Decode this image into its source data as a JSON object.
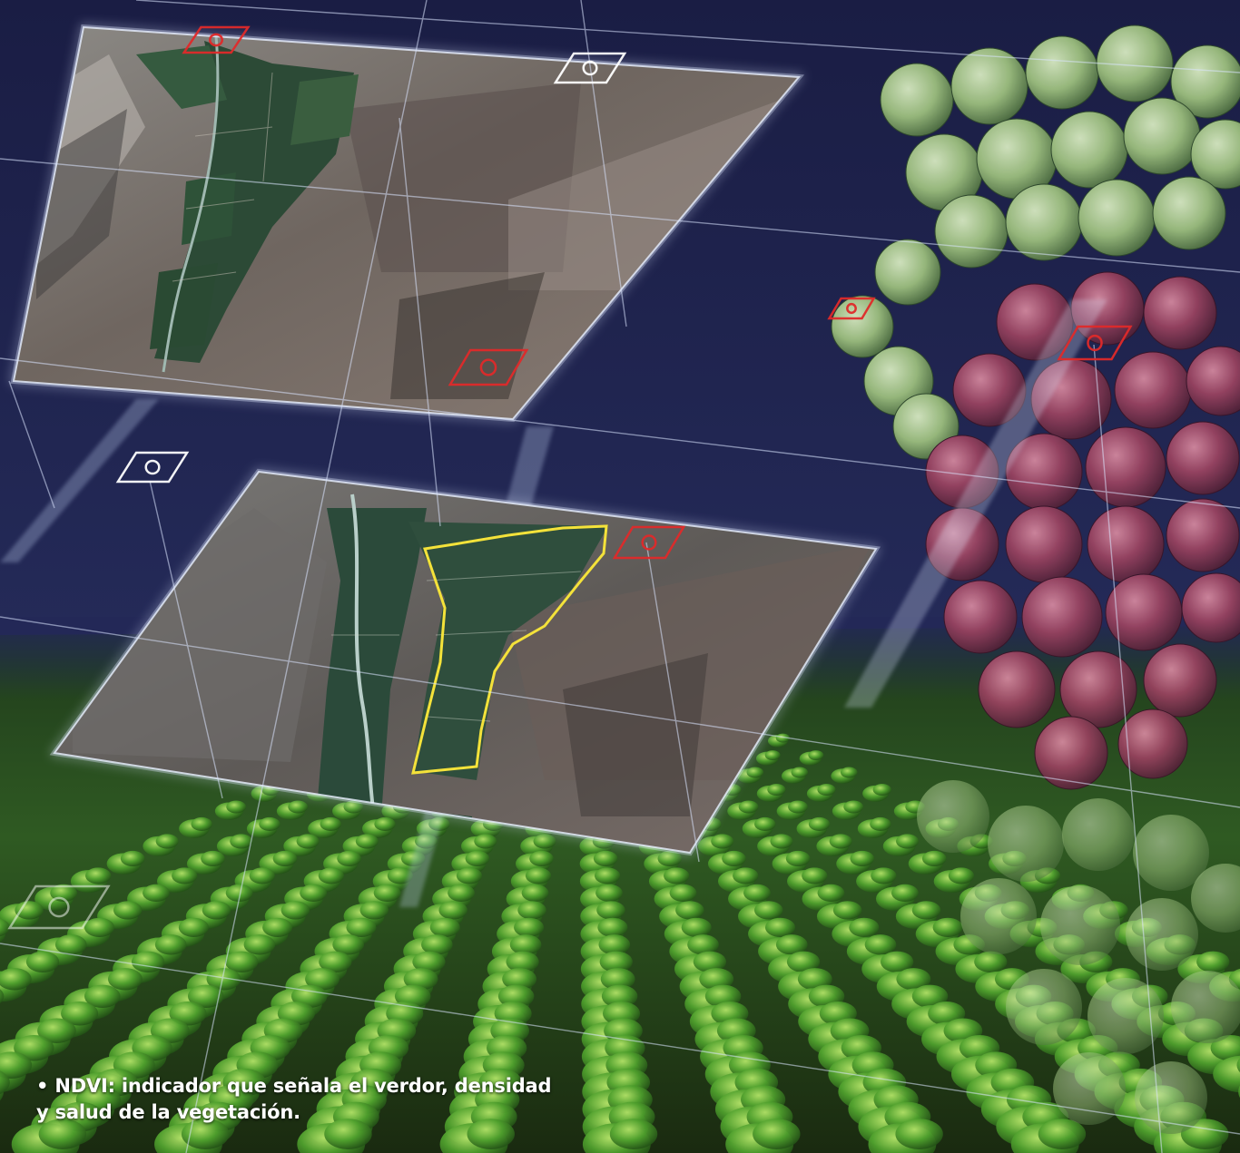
{
  "caption": {
    "line1": "• NDVI: indicador que señala el verdor, densidad",
    "line2": "y salud de la vegetación."
  },
  "colors": {
    "sky": "#1c1f47",
    "marker_red": "#e02a2a",
    "marker_white": "#ffffff",
    "field_outline": "#f4e23a",
    "crop_green": "#3f9a2a",
    "grape_green": "#a9c98a",
    "grape_red": "#9a4360"
  },
  "icons": [
    "target-marker-icon"
  ]
}
